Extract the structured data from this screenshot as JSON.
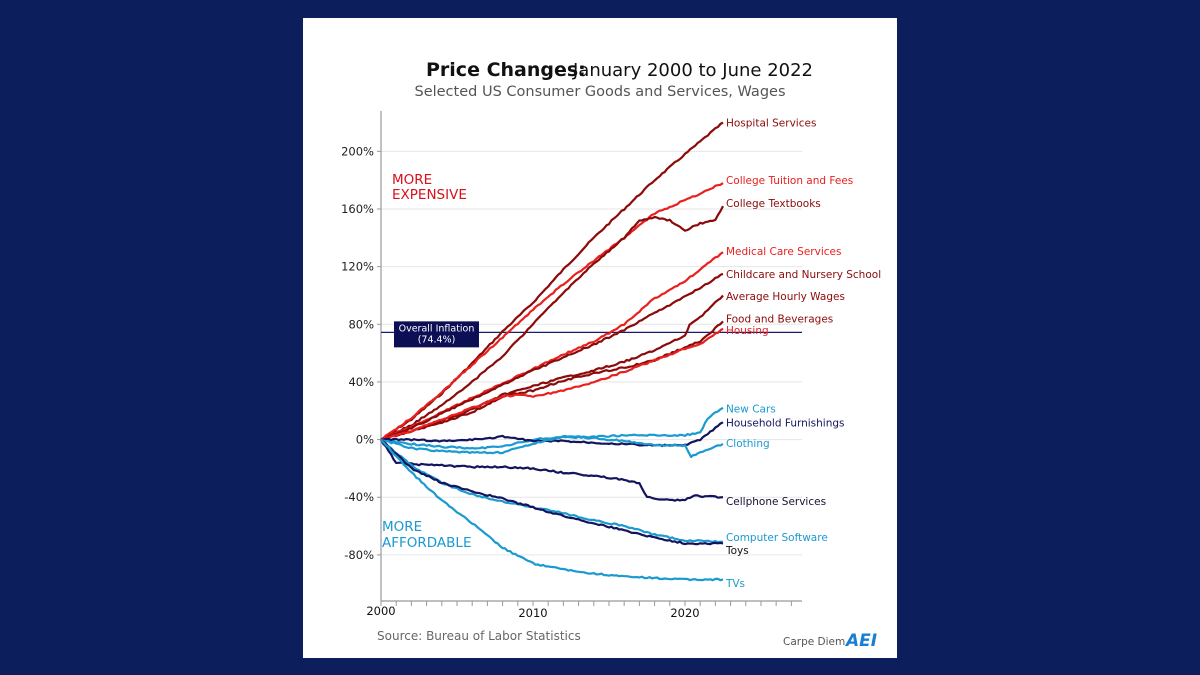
{
  "chart_data": {
    "type": "line",
    "title_bold": "Price Changes:",
    "title_rest": "January 2000 to June 2022",
    "subtitle": "Selected US Consumer Goods and Services, Wages",
    "xlabel": "",
    "ylabel": "",
    "xlim": [
      2000,
      2027.7
    ],
    "ylim": [
      -112,
      228
    ],
    "x_ticks": [
      2000,
      2010,
      2020
    ],
    "x_tick_labels": [
      "2000",
      "2010",
      "2020"
    ],
    "x_minor_ticks_per_year": 1,
    "y_ticks": [
      -80,
      -40,
      0,
      40,
      80,
      120,
      160,
      200
    ],
    "y_tick_labels": [
      "-80%",
      "-40%",
      "0%",
      "40%",
      "80%",
      "120%",
      "160%",
      "200%"
    ],
    "grid": "horizontal",
    "annotations": {
      "more_expensive_line1": "MORE",
      "more_expensive_line2": "EXPENSIVE",
      "more_affordable_line1": "MORE",
      "more_affordable_line2": "AFFORDABLE",
      "inflation_label_line1": "Overall Inflation",
      "inflation_label_line2": "(74.4%)",
      "inflation_value": 74.4
    },
    "source": "Source: Bureau of Labor Statistics",
    "brand": "Carpe Diem",
    "logo": "AEI",
    "colors": {
      "dark_red": "#8b0a0a",
      "red": "#e8201e",
      "navy": "#14145e",
      "cyan": "#1a9ad0",
      "expensive_text": "#d8101a",
      "affordable_text": "#1a9ad0",
      "inflation_box": "#0d0f55",
      "background": "#0c1f5c"
    },
    "series": [
      {
        "name": "Hospital Services",
        "color_key": "dark_red",
        "x": [
          2000,
          2002,
          2004,
          2006,
          2008,
          2010,
          2012,
          2014,
          2016,
          2018,
          2020,
          2022.5
        ],
        "values": [
          0,
          14,
          32,
          53,
          75,
          95,
          118,
          140,
          160,
          180,
          198,
          220
        ]
      },
      {
        "name": "College Tuition and Fees",
        "color_key": "red",
        "x": [
          2000,
          2002,
          2004,
          2006,
          2008,
          2010,
          2012,
          2014,
          2016,
          2018,
          2020,
          2022.5
        ],
        "values": [
          0,
          15,
          33,
          52,
          71,
          90,
          108,
          124,
          140,
          157,
          166,
          178
        ]
      },
      {
        "name": "College Textbooks",
        "color_key": "dark_red",
        "x": [
          2000,
          2002,
          2004,
          2006,
          2008,
          2010,
          2012,
          2014,
          2016,
          2017,
          2018,
          2019,
          2020,
          2021,
          2022,
          2022.5
        ],
        "values": [
          0,
          10,
          24,
          40,
          58,
          80,
          102,
          122,
          140,
          152,
          154,
          152,
          145,
          150,
          152,
          162
        ]
      },
      {
        "name": "Medical Care Services",
        "color_key": "red",
        "x": [
          2000,
          2002,
          2004,
          2006,
          2008,
          2010,
          2012,
          2014,
          2016,
          2018,
          2020,
          2022.5
        ],
        "values": [
          0,
          9,
          19,
          29,
          39,
          49,
          59,
          68,
          80,
          98,
          110,
          130
        ]
      },
      {
        "name": "Childcare and Nursery School",
        "color_key": "dark_red",
        "x": [
          2000,
          2002,
          2004,
          2006,
          2008,
          2010,
          2012,
          2014,
          2016,
          2018,
          2020,
          2022.5
        ],
        "values": [
          0,
          8,
          18,
          28,
          38,
          48,
          57,
          66,
          76,
          88,
          99,
          115
        ]
      },
      {
        "name": "Average Hourly Wages",
        "color_key": "dark_red",
        "x": [
          2000,
          2002,
          2004,
          2006,
          2008,
          2010,
          2012,
          2014,
          2016,
          2018,
          2020,
          2020.3,
          2021,
          2022.5
        ],
        "values": [
          0,
          6,
          13,
          21,
          31,
          37,
          43,
          48,
          54,
          62,
          72,
          80,
          85,
          100
        ]
      },
      {
        "name": "Food and Beverages",
        "color_key": "dark_red",
        "x": [
          2000,
          2002,
          2004,
          2006,
          2008,
          2010,
          2012,
          2014,
          2016,
          2018,
          2020,
          2021,
          2022.5
        ],
        "values": [
          0,
          6,
          12,
          19,
          30,
          34,
          41,
          46,
          50,
          55,
          64,
          68,
          82
        ]
      },
      {
        "name": "Housing",
        "color_key": "red",
        "x": [
          2000,
          2002,
          2004,
          2006,
          2008,
          2009,
          2010,
          2012,
          2014,
          2016,
          2018,
          2020,
          2021,
          2022.5
        ],
        "values": [
          0,
          6,
          14,
          22,
          30,
          31,
          30,
          34,
          40,
          47,
          55,
          63,
          66,
          77
        ]
      },
      {
        "name": "New Cars",
        "color_key": "cyan",
        "x": [
          2000,
          2002,
          2004,
          2006,
          2008,
          2010,
          2012,
          2014,
          2016,
          2018,
          2020,
          2021,
          2021.5,
          2022.5
        ],
        "values": [
          0,
          -3,
          -5,
          -6,
          -5,
          0,
          2,
          2,
          3,
          3,
          3,
          5,
          15,
          22
        ]
      },
      {
        "name": "Household Furnishings",
        "color_key": "navy",
        "x": [
          2000,
          2002,
          2004,
          2006,
          2008,
          2010,
          2012,
          2014,
          2016,
          2018,
          2020,
          2021,
          2022.5
        ],
        "values": [
          0,
          0,
          -1,
          0,
          2,
          -1,
          -1,
          -2,
          -3,
          -4,
          -4,
          0,
          12
        ]
      },
      {
        "name": "Clothing",
        "color_key": "cyan",
        "x": [
          2000,
          2002,
          2004,
          2006,
          2008,
          2010,
          2012,
          2014,
          2016,
          2018,
          2020,
          2020.4,
          2021,
          2022.5
        ],
        "values": [
          0,
          -6,
          -8,
          -9,
          -9,
          -3,
          2,
          1,
          -1,
          -4,
          -4,
          -12,
          -9,
          -3
        ]
      },
      {
        "name": "Cellphone Services",
        "color_key": "navy",
        "x": [
          2000,
          2001,
          2002,
          2004,
          2006,
          2008,
          2010,
          2012,
          2014,
          2016,
          2017,
          2017.5,
          2019,
          2020,
          2020.5,
          2022.5
        ],
        "values": [
          0,
          -16,
          -17,
          -18,
          -19,
          -19,
          -20,
          -23,
          -25,
          -28,
          -30,
          -40,
          -42,
          -42,
          -39,
          -40
        ]
      },
      {
        "name": "Computer Software",
        "color_key": "cyan",
        "x": [
          2000,
          2002,
          2004,
          2006,
          2008,
          2010,
          2012,
          2014,
          2016,
          2018,
          2020,
          2022.5
        ],
        "values": [
          0,
          -18,
          -30,
          -38,
          -43,
          -47,
          -51,
          -56,
          -60,
          -66,
          -70,
          -71
        ]
      },
      {
        "name": "Toys",
        "color_key": "navy",
        "x": [
          2000,
          2002,
          2004,
          2006,
          2008,
          2010,
          2012,
          2014,
          2016,
          2018,
          2020,
          2022.5
        ],
        "values": [
          0,
          -20,
          -30,
          -36,
          -41,
          -47,
          -53,
          -58,
          -63,
          -68,
          -72,
          -72
        ]
      },
      {
        "name": "TVs",
        "color_key": "cyan",
        "x": [
          2000,
          2002,
          2004,
          2006,
          2008,
          2010,
          2012,
          2014,
          2016,
          2018,
          2020,
          2022.5
        ],
        "values": [
          0,
          -23,
          -42,
          -58,
          -75,
          -86,
          -90,
          -93,
          -95,
          -96,
          -97,
          -97
        ]
      }
    ],
    "end_labels": [
      {
        "series": "Hospital Services",
        "text": "Hospital Services",
        "color_key": "dark_red",
        "label_value": 220
      },
      {
        "series": "College Tuition and Fees",
        "text": "College Tuition and Fees",
        "color_key": "red",
        "label_value": 180
      },
      {
        "series": "College Textbooks",
        "text": "College Textbooks",
        "color_key": "dark_red",
        "label_value": 164
      },
      {
        "series": "Medical Care Services",
        "text": "Medical Care Services",
        "color_key": "red",
        "label_value": 131
      },
      {
        "series": "Childcare and Nursery School",
        "text": "Childcare and Nursery School",
        "color_key": "dark_red",
        "label_value": 115
      },
      {
        "series": "Average Hourly Wages",
        "text": "Average Hourly Wages",
        "color_key": "dark_red",
        "label_value": 99.5
      },
      {
        "series": "Food and Beverages",
        "text": "Food and Beverages",
        "color_key": "dark_red",
        "label_value": 84
      },
      {
        "series": "Housing",
        "text": "Housing",
        "color_key": "red",
        "label_value": 76
      },
      {
        "series": "New Cars",
        "text": "New Cars",
        "color_key": "cyan",
        "label_value": 21.5
      },
      {
        "series": "Household Furnishings",
        "text": "Household Furnishings",
        "color_key": "navy",
        "label_value": 12
      },
      {
        "series": "Clothing",
        "text": "Clothing",
        "color_key": "cyan",
        "label_value": -2.5
      },
      {
        "series": "Cellphone Services",
        "text": "Cellphone Services",
        "color_key": "navy_text",
        "label_value": -42.5
      },
      {
        "series": "Computer Software",
        "text": "Computer Software",
        "color_key": "cyan",
        "label_value": -67.5
      },
      {
        "series": "Toys",
        "text": "Toys",
        "color_key": "black",
        "label_value": -76.5
      },
      {
        "series": "TVs",
        "text": "TVs",
        "color_key": "cyan",
        "label_value": -99.5
      }
    ]
  }
}
